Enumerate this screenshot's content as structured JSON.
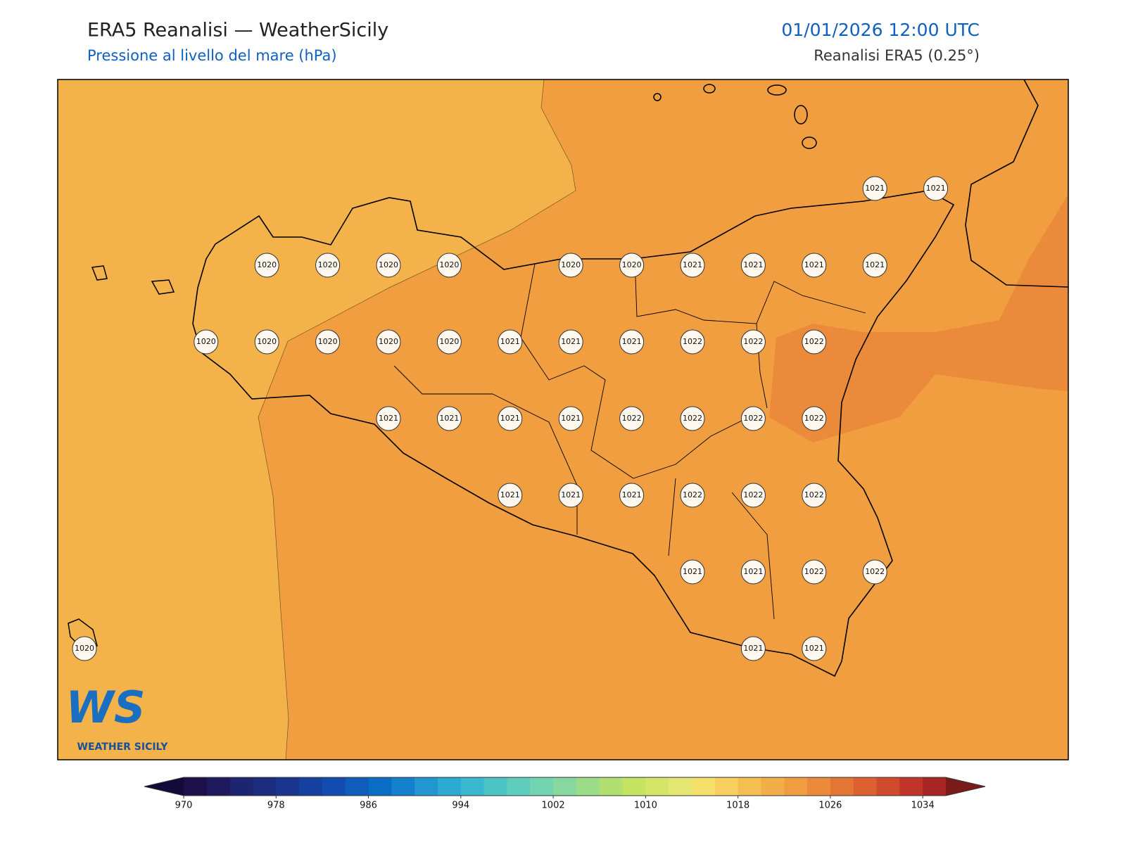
{
  "header": {
    "title": "ERA5 Reanalisi — WeatherSicily",
    "subtitle": "Pressione al livello del mare (hPa)",
    "datetime": "01/01/2026 12:00 UTC",
    "source": "Reanalisi ERA5 (0.25°)"
  },
  "logo": {
    "mark": "WS",
    "text": "WEATHER SICILY"
  },
  "pressure_grid": [
    [
      null,
      null,
      null,
      null,
      null,
      null,
      null,
      null,
      null,
      null,
      null,
      null,
      null,
      1021,
      1021
    ],
    [
      null,
      null,
      null,
      1020,
      1020,
      1020,
      1020,
      null,
      1020,
      1020,
      1021,
      1021,
      1021,
      1021,
      null
    ],
    [
      null,
      null,
      1020,
      1020,
      1020,
      1020,
      1020,
      1021,
      1021,
      1021,
      1022,
      1022,
      1022,
      null,
      null
    ],
    [
      null,
      null,
      null,
      null,
      null,
      1021,
      1021,
      1021,
      1021,
      1022,
      1022,
      1022,
      1022,
      null,
      null
    ],
    [
      null,
      null,
      null,
      null,
      null,
      null,
      null,
      1021,
      1021,
      1021,
      1022,
      1022,
      1022,
      null,
      null
    ],
    [
      null,
      null,
      null,
      null,
      null,
      null,
      null,
      null,
      null,
      null,
      1021,
      1021,
      1022,
      1022,
      null
    ],
    [
      1020,
      null,
      null,
      null,
      null,
      null,
      null,
      null,
      null,
      null,
      null,
      1021,
      1021,
      null,
      null
    ]
  ],
  "colorbar": {
    "lim": [
      970,
      1036
    ],
    "ticks": [
      970,
      978,
      986,
      994,
      1002,
      1010,
      1018,
      1026,
      1034
    ],
    "colors": [
      "#1c0f4a",
      "#1f1a5e",
      "#1e2570",
      "#1c2d80",
      "#1a3590",
      "#1640a0",
      "#124cae",
      "#0f5cba",
      "#0a6cc4",
      "#1580cc",
      "#2296d0",
      "#2daad2",
      "#3ab8cf",
      "#4ec3c6",
      "#5fcdbc",
      "#72d4b0",
      "#86d89e",
      "#9cdc88",
      "#b2e070",
      "#c6e464",
      "#d6e66a",
      "#e6e673",
      "#f5e06a",
      "#f7cf5e",
      "#f4bf50",
      "#f2ae48",
      "#ef9d40",
      "#eb8a3a",
      "#e47634",
      "#dc6030",
      "#d04a2c",
      "#c03529",
      "#a82525"
    ],
    "under": "#140a3a",
    "over": "#7a1a1a"
  }
}
